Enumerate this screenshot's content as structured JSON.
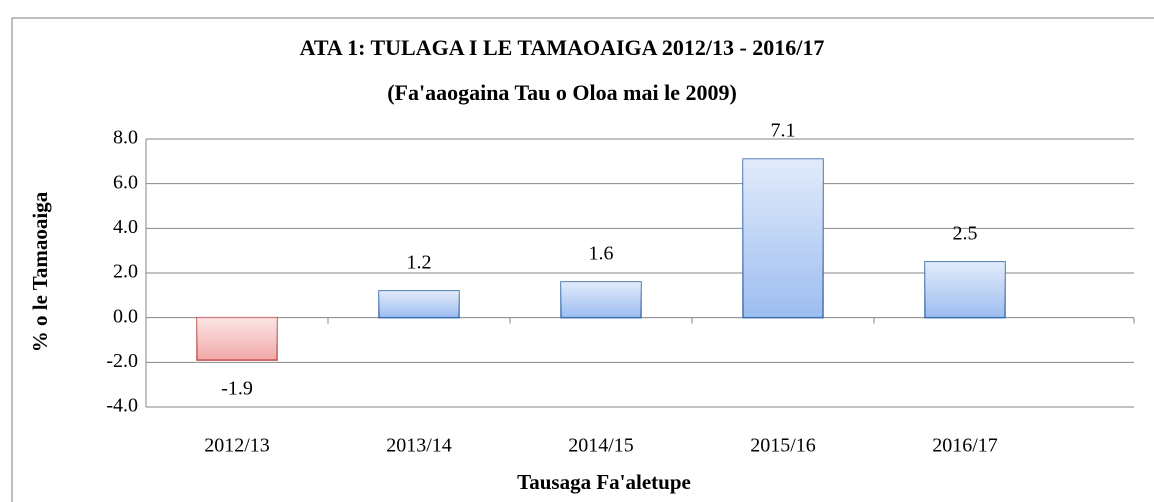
{
  "chart_data": {
    "type": "bar",
    "title": "ATA 1: TULAGA I LE TAMAOAIGA 2012/13 - 2016/17",
    "subtitle": "(Fa'aaogaina Tau o Oloa mai le 2009)",
    "x_label": "Tausaga Fa'aletupe",
    "y_label": "% o le Tamaoaiga",
    "categories": [
      "2012/13",
      "2013/14",
      "2014/15",
      "2015/16",
      "2016/17"
    ],
    "values": [
      -1.9,
      1.2,
      1.6,
      7.1,
      2.5
    ],
    "color": "#9dbdf0",
    "negative_color": "#f2a9a9",
    "ylim": [
      -4,
      8
    ],
    "yticks": [
      {
        "value": -4,
        "label": "-4.0"
      },
      {
        "value": -2,
        "label": "-2.0"
      },
      {
        "value": 0,
        "label": "0.0"
      },
      {
        "value": 2,
        "label": "2.0"
      },
      {
        "value": 4,
        "label": "4.0"
      },
      {
        "value": 6,
        "label": "6.0"
      },
      {
        "value": 8,
        "label": "8.0"
      }
    ],
    "grid": true
  }
}
